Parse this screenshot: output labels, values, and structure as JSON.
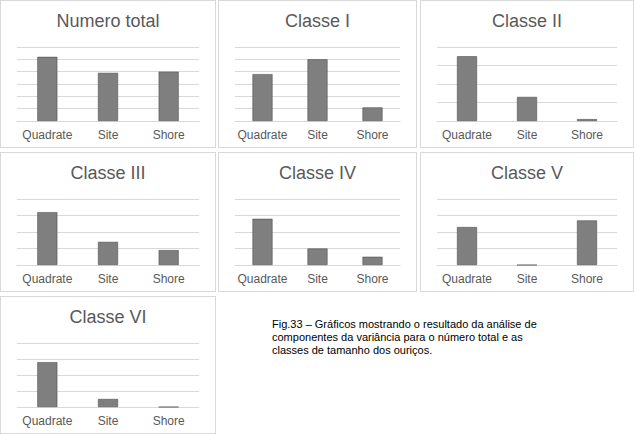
{
  "chart_data": [
    {
      "type": "bar",
      "title": "Numero total",
      "categories": [
        "Quadrate",
        "Site",
        "Shore"
      ],
      "values": [
        5.2,
        3.9,
        4.0
      ],
      "color": "#7f7f7f",
      "ylim": [
        0,
        6
      ],
      "yticks": [
        0,
        1,
        2,
        3,
        4,
        5,
        6
      ],
      "grid": true,
      "tick_labels": "x"
    },
    {
      "type": "bar",
      "title": "Classe I",
      "categories": [
        "Quadrate",
        "Site",
        "Shore"
      ],
      "values": [
        3.8,
        5.0,
        1.1
      ],
      "color": "#7f7f7f",
      "ylim": [
        0,
        6
      ],
      "yticks": [
        0,
        1,
        2,
        3,
        4,
        5,
        6
      ],
      "grid": true,
      "tick_labels": "x"
    },
    {
      "type": "bar",
      "title": "Classe II",
      "categories": [
        "Quadrate",
        "Site",
        "Shore"
      ],
      "values": [
        3.5,
        1.3,
        0.1
      ],
      "color": "#7f7f7f",
      "ylim": [
        0,
        4
      ],
      "yticks": [
        0,
        1,
        2,
        3,
        4
      ],
      "grid": true,
      "tick_labels": "x"
    },
    {
      "type": "bar",
      "title": "Classe III",
      "categories": [
        "Quadrate",
        "Site",
        "Shore"
      ],
      "values": [
        3.2,
        1.4,
        0.9
      ],
      "color": "#7f7f7f",
      "ylim": [
        0,
        4
      ],
      "yticks": [
        0,
        1,
        2,
        3,
        4
      ],
      "grid": true,
      "tick_labels": "x"
    },
    {
      "type": "bar",
      "title": "Classe IV",
      "categories": [
        "Quadrate",
        "Site",
        "Shore"
      ],
      "values": [
        2.8,
        1.0,
        0.5
      ],
      "color": "#7f7f7f",
      "ylim": [
        0,
        4
      ],
      "yticks": [
        0,
        1,
        2,
        3,
        4
      ],
      "grid": true,
      "tick_labels": "x"
    },
    {
      "type": "bar",
      "title": "Classe V",
      "categories": [
        "Quadrate",
        "Site",
        "Shore"
      ],
      "values": [
        2.3,
        0,
        2.7
      ],
      "color": "#7f7f7f",
      "ylim": [
        0,
        4
      ],
      "yticks": [
        0,
        1,
        2,
        3,
        4
      ],
      "grid": true,
      "tick_labels": "x"
    },
    {
      "type": "bar",
      "title": "Classe VI",
      "categories": [
        "Quadrate",
        "Site",
        "Shore"
      ],
      "values": [
        2.8,
        0.5,
        0
      ],
      "color": "#7f7f7f",
      "ylim": [
        0,
        4
      ],
      "yticks": [
        0,
        1,
        2,
        3,
        4
      ],
      "grid": true,
      "tick_labels": "x"
    }
  ],
  "caption": "Fig.33 – Gráficos mostrando o resultado da análise de componentes da variância para o número total e as classes de tamanho dos ouriços."
}
